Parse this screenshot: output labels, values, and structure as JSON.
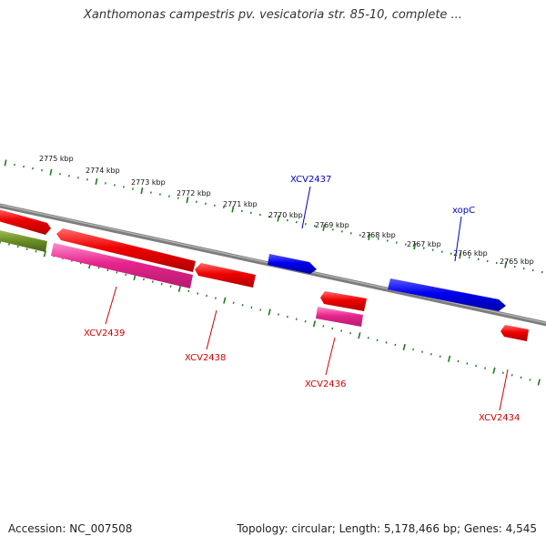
{
  "title": "Xanthomonas campestris pv. vesicatoria str. 85-10, complete ...",
  "footer": {
    "accession": "Accession: NC_007508",
    "stats": "Topology: circular; Length: 5,178,466 bp; Genes: 4,545"
  },
  "colors": {
    "backbone": "#7d7d7d",
    "tick": "#1f7a1f",
    "red_gene": "#e80000",
    "pink_gene": "#e6248c",
    "blue_gene": "#0000dd",
    "olive_gene": "#6b8e23",
    "red_label": "#d40000",
    "blue_label": "#0000c8"
  },
  "scale_labels": [
    "2775 kbp",
    "2774 kbp",
    "2773 kbp",
    "2772 kbp",
    "2771 kbp",
    "2770 kbp",
    "2769 kbp",
    "2768 kbp",
    "2767 kbp",
    "2766 kbp",
    "2765 kbp"
  ],
  "gene_labels": {
    "xcv2437": "XCV2437",
    "xopc": "xopC",
    "xcv2439": "XCV2439",
    "xcv2438": "XCV2438",
    "xcv2436": "XCV2436",
    "xcv2434": "XCV2434"
  }
}
